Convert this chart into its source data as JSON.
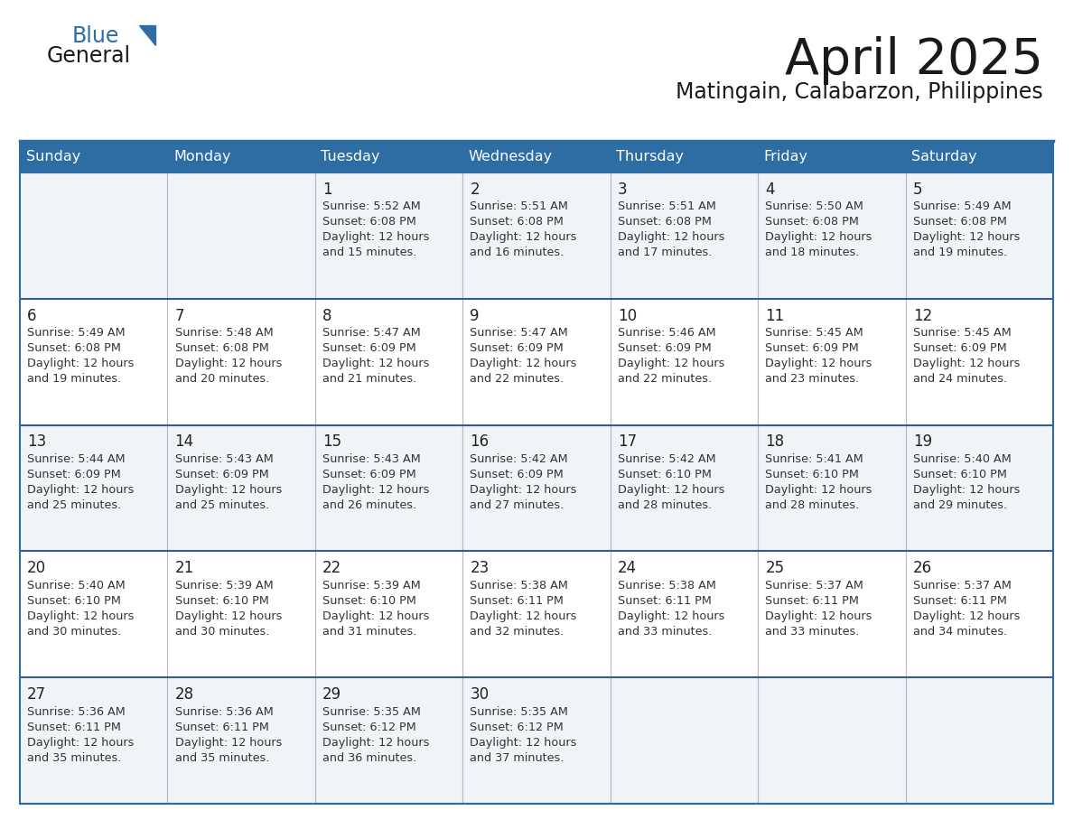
{
  "title": "April 2025",
  "subtitle": "Matingain, Calabarzon, Philippines",
  "header_bg_color": "#2E6DA4",
  "header_text_color": "#FFFFFF",
  "bg_color": "#FFFFFF",
  "row_colors": [
    "#F0F4F8",
    "#FFFFFF",
    "#F0F4F8",
    "#FFFFFF",
    "#F0F4F8"
  ],
  "border_color": "#2E6DA4",
  "row_border_color": "#3A5A8A",
  "title_color": "#1a1a1a",
  "subtitle_color": "#1a1a1a",
  "text_color": "#222222",
  "info_color": "#333333",
  "day_names": [
    "Sunday",
    "Monday",
    "Tuesday",
    "Wednesday",
    "Thursday",
    "Friday",
    "Saturday"
  ],
  "weeks": [
    [
      {
        "day": "",
        "info": ""
      },
      {
        "day": "",
        "info": ""
      },
      {
        "day": "1",
        "info": "Sunrise: 5:52 AM\nSunset: 6:08 PM\nDaylight: 12 hours\nand 15 minutes."
      },
      {
        "day": "2",
        "info": "Sunrise: 5:51 AM\nSunset: 6:08 PM\nDaylight: 12 hours\nand 16 minutes."
      },
      {
        "day": "3",
        "info": "Sunrise: 5:51 AM\nSunset: 6:08 PM\nDaylight: 12 hours\nand 17 minutes."
      },
      {
        "day": "4",
        "info": "Sunrise: 5:50 AM\nSunset: 6:08 PM\nDaylight: 12 hours\nand 18 minutes."
      },
      {
        "day": "5",
        "info": "Sunrise: 5:49 AM\nSunset: 6:08 PM\nDaylight: 12 hours\nand 19 minutes."
      }
    ],
    [
      {
        "day": "6",
        "info": "Sunrise: 5:49 AM\nSunset: 6:08 PM\nDaylight: 12 hours\nand 19 minutes."
      },
      {
        "day": "7",
        "info": "Sunrise: 5:48 AM\nSunset: 6:08 PM\nDaylight: 12 hours\nand 20 minutes."
      },
      {
        "day": "8",
        "info": "Sunrise: 5:47 AM\nSunset: 6:09 PM\nDaylight: 12 hours\nand 21 minutes."
      },
      {
        "day": "9",
        "info": "Sunrise: 5:47 AM\nSunset: 6:09 PM\nDaylight: 12 hours\nand 22 minutes."
      },
      {
        "day": "10",
        "info": "Sunrise: 5:46 AM\nSunset: 6:09 PM\nDaylight: 12 hours\nand 22 minutes."
      },
      {
        "day": "11",
        "info": "Sunrise: 5:45 AM\nSunset: 6:09 PM\nDaylight: 12 hours\nand 23 minutes."
      },
      {
        "day": "12",
        "info": "Sunrise: 5:45 AM\nSunset: 6:09 PM\nDaylight: 12 hours\nand 24 minutes."
      }
    ],
    [
      {
        "day": "13",
        "info": "Sunrise: 5:44 AM\nSunset: 6:09 PM\nDaylight: 12 hours\nand 25 minutes."
      },
      {
        "day": "14",
        "info": "Sunrise: 5:43 AM\nSunset: 6:09 PM\nDaylight: 12 hours\nand 25 minutes."
      },
      {
        "day": "15",
        "info": "Sunrise: 5:43 AM\nSunset: 6:09 PM\nDaylight: 12 hours\nand 26 minutes."
      },
      {
        "day": "16",
        "info": "Sunrise: 5:42 AM\nSunset: 6:09 PM\nDaylight: 12 hours\nand 27 minutes."
      },
      {
        "day": "17",
        "info": "Sunrise: 5:42 AM\nSunset: 6:10 PM\nDaylight: 12 hours\nand 28 minutes."
      },
      {
        "day": "18",
        "info": "Sunrise: 5:41 AM\nSunset: 6:10 PM\nDaylight: 12 hours\nand 28 minutes."
      },
      {
        "day": "19",
        "info": "Sunrise: 5:40 AM\nSunset: 6:10 PM\nDaylight: 12 hours\nand 29 minutes."
      }
    ],
    [
      {
        "day": "20",
        "info": "Sunrise: 5:40 AM\nSunset: 6:10 PM\nDaylight: 12 hours\nand 30 minutes."
      },
      {
        "day": "21",
        "info": "Sunrise: 5:39 AM\nSunset: 6:10 PM\nDaylight: 12 hours\nand 30 minutes."
      },
      {
        "day": "22",
        "info": "Sunrise: 5:39 AM\nSunset: 6:10 PM\nDaylight: 12 hours\nand 31 minutes."
      },
      {
        "day": "23",
        "info": "Sunrise: 5:38 AM\nSunset: 6:11 PM\nDaylight: 12 hours\nand 32 minutes."
      },
      {
        "day": "24",
        "info": "Sunrise: 5:38 AM\nSunset: 6:11 PM\nDaylight: 12 hours\nand 33 minutes."
      },
      {
        "day": "25",
        "info": "Sunrise: 5:37 AM\nSunset: 6:11 PM\nDaylight: 12 hours\nand 33 minutes."
      },
      {
        "day": "26",
        "info": "Sunrise: 5:37 AM\nSunset: 6:11 PM\nDaylight: 12 hours\nand 34 minutes."
      }
    ],
    [
      {
        "day": "27",
        "info": "Sunrise: 5:36 AM\nSunset: 6:11 PM\nDaylight: 12 hours\nand 35 minutes."
      },
      {
        "day": "28",
        "info": "Sunrise: 5:36 AM\nSunset: 6:11 PM\nDaylight: 12 hours\nand 35 minutes."
      },
      {
        "day": "29",
        "info": "Sunrise: 5:35 AM\nSunset: 6:12 PM\nDaylight: 12 hours\nand 36 minutes."
      },
      {
        "day": "30",
        "info": "Sunrise: 5:35 AM\nSunset: 6:12 PM\nDaylight: 12 hours\nand 37 minutes."
      },
      {
        "day": "",
        "info": ""
      },
      {
        "day": "",
        "info": ""
      },
      {
        "day": "",
        "info": ""
      }
    ]
  ],
  "logo_general_color": "#1a1a1a",
  "logo_blue_color": "#2E6DA4",
  "logo_triangle_color": "#2E6DA4"
}
